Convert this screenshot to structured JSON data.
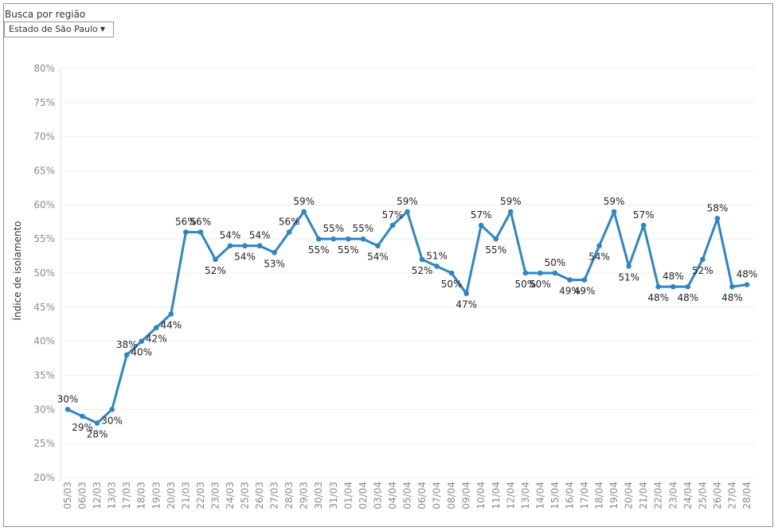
{
  "filter": {
    "label": "Busca por região",
    "selected": "Estado de São Paulo"
  },
  "colors": {
    "line": "#2e86c1",
    "grid": "#eeeeee"
  },
  "chart_data": {
    "type": "line",
    "ylabel": "Índice de isolamento",
    "ylim": [
      20,
      80
    ],
    "yticks": [
      "20%",
      "25%",
      "30%",
      "35%",
      "40%",
      "45%",
      "50%",
      "55%",
      "60%",
      "65%",
      "70%",
      "75%",
      "80%"
    ],
    "x": [
      "05/03",
      "06/03",
      "12/03",
      "13/03",
      "17/03",
      "18/03",
      "19/03",
      "20/03",
      "21/03",
      "22/03",
      "23/03",
      "24/03",
      "25/03",
      "26/03",
      "27/03",
      "28/03",
      "29/03",
      "30/03",
      "31/03",
      "01/04",
      "02/04",
      "03/04",
      "04/04",
      "05/04",
      "06/04",
      "07/04",
      "08/04",
      "09/04",
      "10/04",
      "11/04",
      "12/04",
      "13/04",
      "14/04",
      "15/04",
      "16/04",
      "17/04",
      "18/04",
      "19/04",
      "20/04",
      "21/04",
      "22/04",
      "23/04",
      "24/04",
      "25/04",
      "26/04",
      "27/04",
      "28/04"
    ],
    "values": [
      30,
      29,
      28,
      30,
      38,
      40,
      42,
      44,
      56,
      56,
      52,
      54,
      54,
      54,
      53,
      56,
      59,
      55,
      55,
      55,
      55,
      54,
      57,
      59,
      52,
      51,
      50,
      47,
      57,
      55,
      59,
      50,
      50,
      50,
      49,
      49,
      54,
      59,
      51,
      57,
      48,
      48,
      48,
      52,
      58,
      48,
      48.3
    ],
    "data_labels": [
      {
        "i": 0,
        "text": "30%",
        "pos": "above"
      },
      {
        "i": 1,
        "text": "29%",
        "pos": "below"
      },
      {
        "i": 2,
        "text": "28%",
        "pos": "below"
      },
      {
        "i": 3,
        "text": "30%",
        "pos": "below"
      },
      {
        "i": 4,
        "text": "38%",
        "pos": "above"
      },
      {
        "i": 5,
        "text": "40%",
        "pos": "below"
      },
      {
        "i": 6,
        "text": "42%",
        "pos": "below"
      },
      {
        "i": 7,
        "text": "44%",
        "pos": "below"
      },
      {
        "i": 8,
        "text": "56%",
        "pos": "above"
      },
      {
        "i": 9,
        "text": "56%",
        "pos": "above"
      },
      {
        "i": 10,
        "text": "52%",
        "pos": "below"
      },
      {
        "i": 11,
        "text": "54%",
        "pos": "above"
      },
      {
        "i": 12,
        "text": "54%",
        "pos": "below"
      },
      {
        "i": 13,
        "text": "54%",
        "pos": "above"
      },
      {
        "i": 14,
        "text": "53%",
        "pos": "below"
      },
      {
        "i": 15,
        "text": "56%",
        "pos": "above"
      },
      {
        "i": 16,
        "text": "59%",
        "pos": "above"
      },
      {
        "i": 17,
        "text": "55%",
        "pos": "below"
      },
      {
        "i": 18,
        "text": "55%",
        "pos": "above"
      },
      {
        "i": 19,
        "text": "55%",
        "pos": "below"
      },
      {
        "i": 20,
        "text": "55%",
        "pos": "above"
      },
      {
        "i": 21,
        "text": "54%",
        "pos": "below"
      },
      {
        "i": 22,
        "text": "57%",
        "pos": "above"
      },
      {
        "i": 23,
        "text": "59%",
        "pos": "above"
      },
      {
        "i": 24,
        "text": "52%",
        "pos": "below"
      },
      {
        "i": 25,
        "text": "51%",
        "pos": "above"
      },
      {
        "i": 26,
        "text": "50%",
        "pos": "below"
      },
      {
        "i": 27,
        "text": "47%",
        "pos": "below"
      },
      {
        "i": 28,
        "text": "57%",
        "pos": "above"
      },
      {
        "i": 29,
        "text": "55%",
        "pos": "below"
      },
      {
        "i": 30,
        "text": "59%",
        "pos": "above"
      },
      {
        "i": 31,
        "text": "50%",
        "pos": "below"
      },
      {
        "i": 32,
        "text": "50%",
        "pos": "below"
      },
      {
        "i": 33,
        "text": "50%",
        "pos": "above"
      },
      {
        "i": 34,
        "text": "49%",
        "pos": "below"
      },
      {
        "i": 35,
        "text": "49%",
        "pos": "below"
      },
      {
        "i": 36,
        "text": "54%",
        "pos": "below"
      },
      {
        "i": 37,
        "text": "59%",
        "pos": "above"
      },
      {
        "i": 38,
        "text": "51%",
        "pos": "below"
      },
      {
        "i": 39,
        "text": "57%",
        "pos": "above"
      },
      {
        "i": 40,
        "text": "48%",
        "pos": "below"
      },
      {
        "i": 41,
        "text": "48%",
        "pos": "above"
      },
      {
        "i": 42,
        "text": "48%",
        "pos": "below"
      },
      {
        "i": 43,
        "text": "52%",
        "pos": "below"
      },
      {
        "i": 44,
        "text": "58%",
        "pos": "above"
      },
      {
        "i": 45,
        "text": "48%",
        "pos": "below"
      },
      {
        "i": 46,
        "text": "48%",
        "pos": "above"
      }
    ],
    "grid": true,
    "legend": "none"
  }
}
